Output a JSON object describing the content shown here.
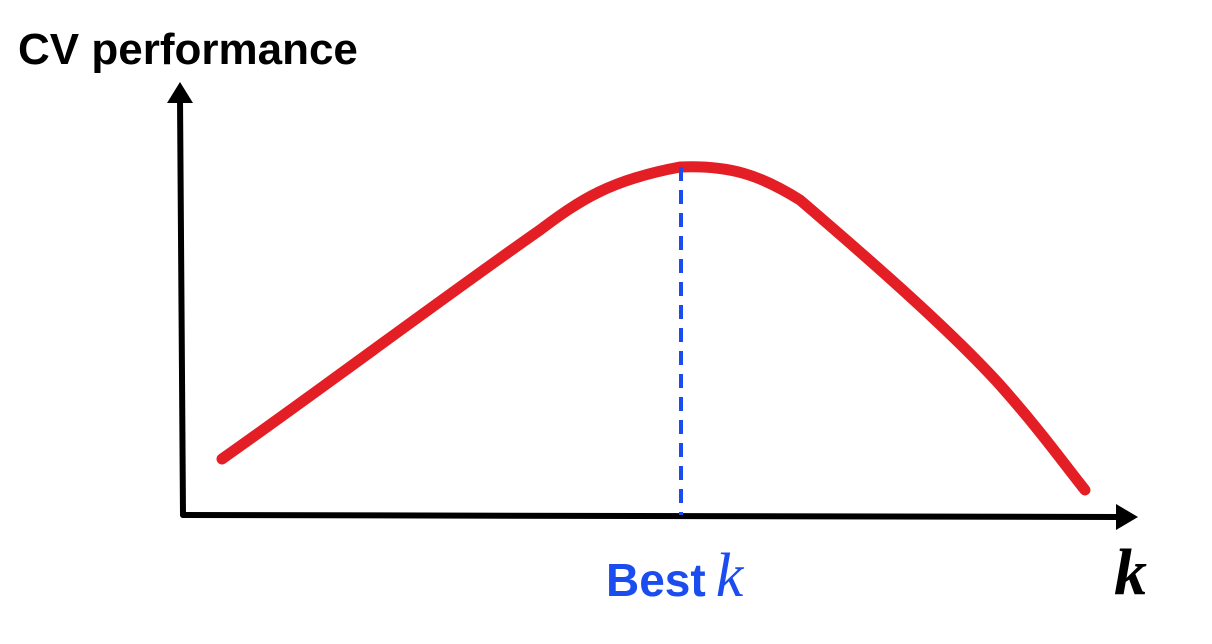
{
  "diagram": {
    "y_axis_label": "CV performance",
    "x_axis_label": "k",
    "marker_label_word": "Best",
    "marker_label_var": "k"
  },
  "colors": {
    "curve": "#e31e24",
    "marker": "#1a4cf0",
    "axes": "#000000",
    "background": "#ffffff"
  }
}
